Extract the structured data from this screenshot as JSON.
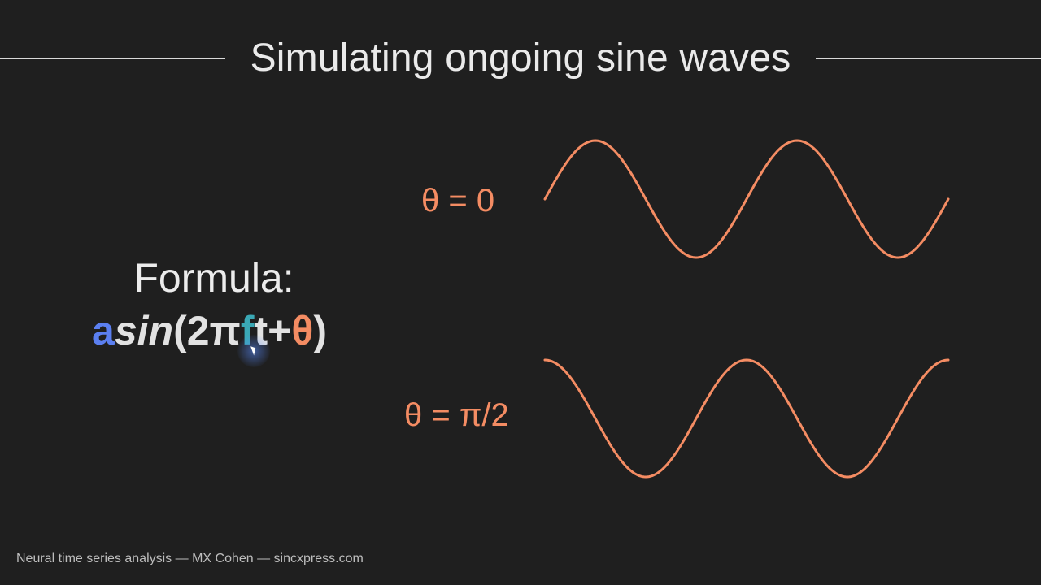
{
  "slide": {
    "title": "Simulating ongoing sine waves",
    "formula_label": "Formula:",
    "formula": {
      "amplitude": "a",
      "sin": "sin",
      "open": "(2π",
      "frequency": "f",
      "time": "t+",
      "phase": "θ",
      "close": ")"
    },
    "waves": [
      {
        "label": "θ = 0",
        "phase": 0
      },
      {
        "label": "θ = π/2",
        "phase": 1.5708
      }
    ],
    "footer": "Neural time series analysis — MX Cohen — sincxpress.com"
  },
  "colors": {
    "background": "#1f1f1f",
    "amplitude": "#5b7ff0",
    "frequency": "#3aa8b5",
    "phase": "#f48c63",
    "wave": "#f48c63"
  },
  "icons": {
    "cursor": "mouse-pointer-icon"
  },
  "chart_data": {
    "type": "line",
    "cycles": 2,
    "series": [
      {
        "name": "θ = 0",
        "phase": 0
      },
      {
        "name": "θ = π/2",
        "phase": 1.5708
      }
    ]
  }
}
